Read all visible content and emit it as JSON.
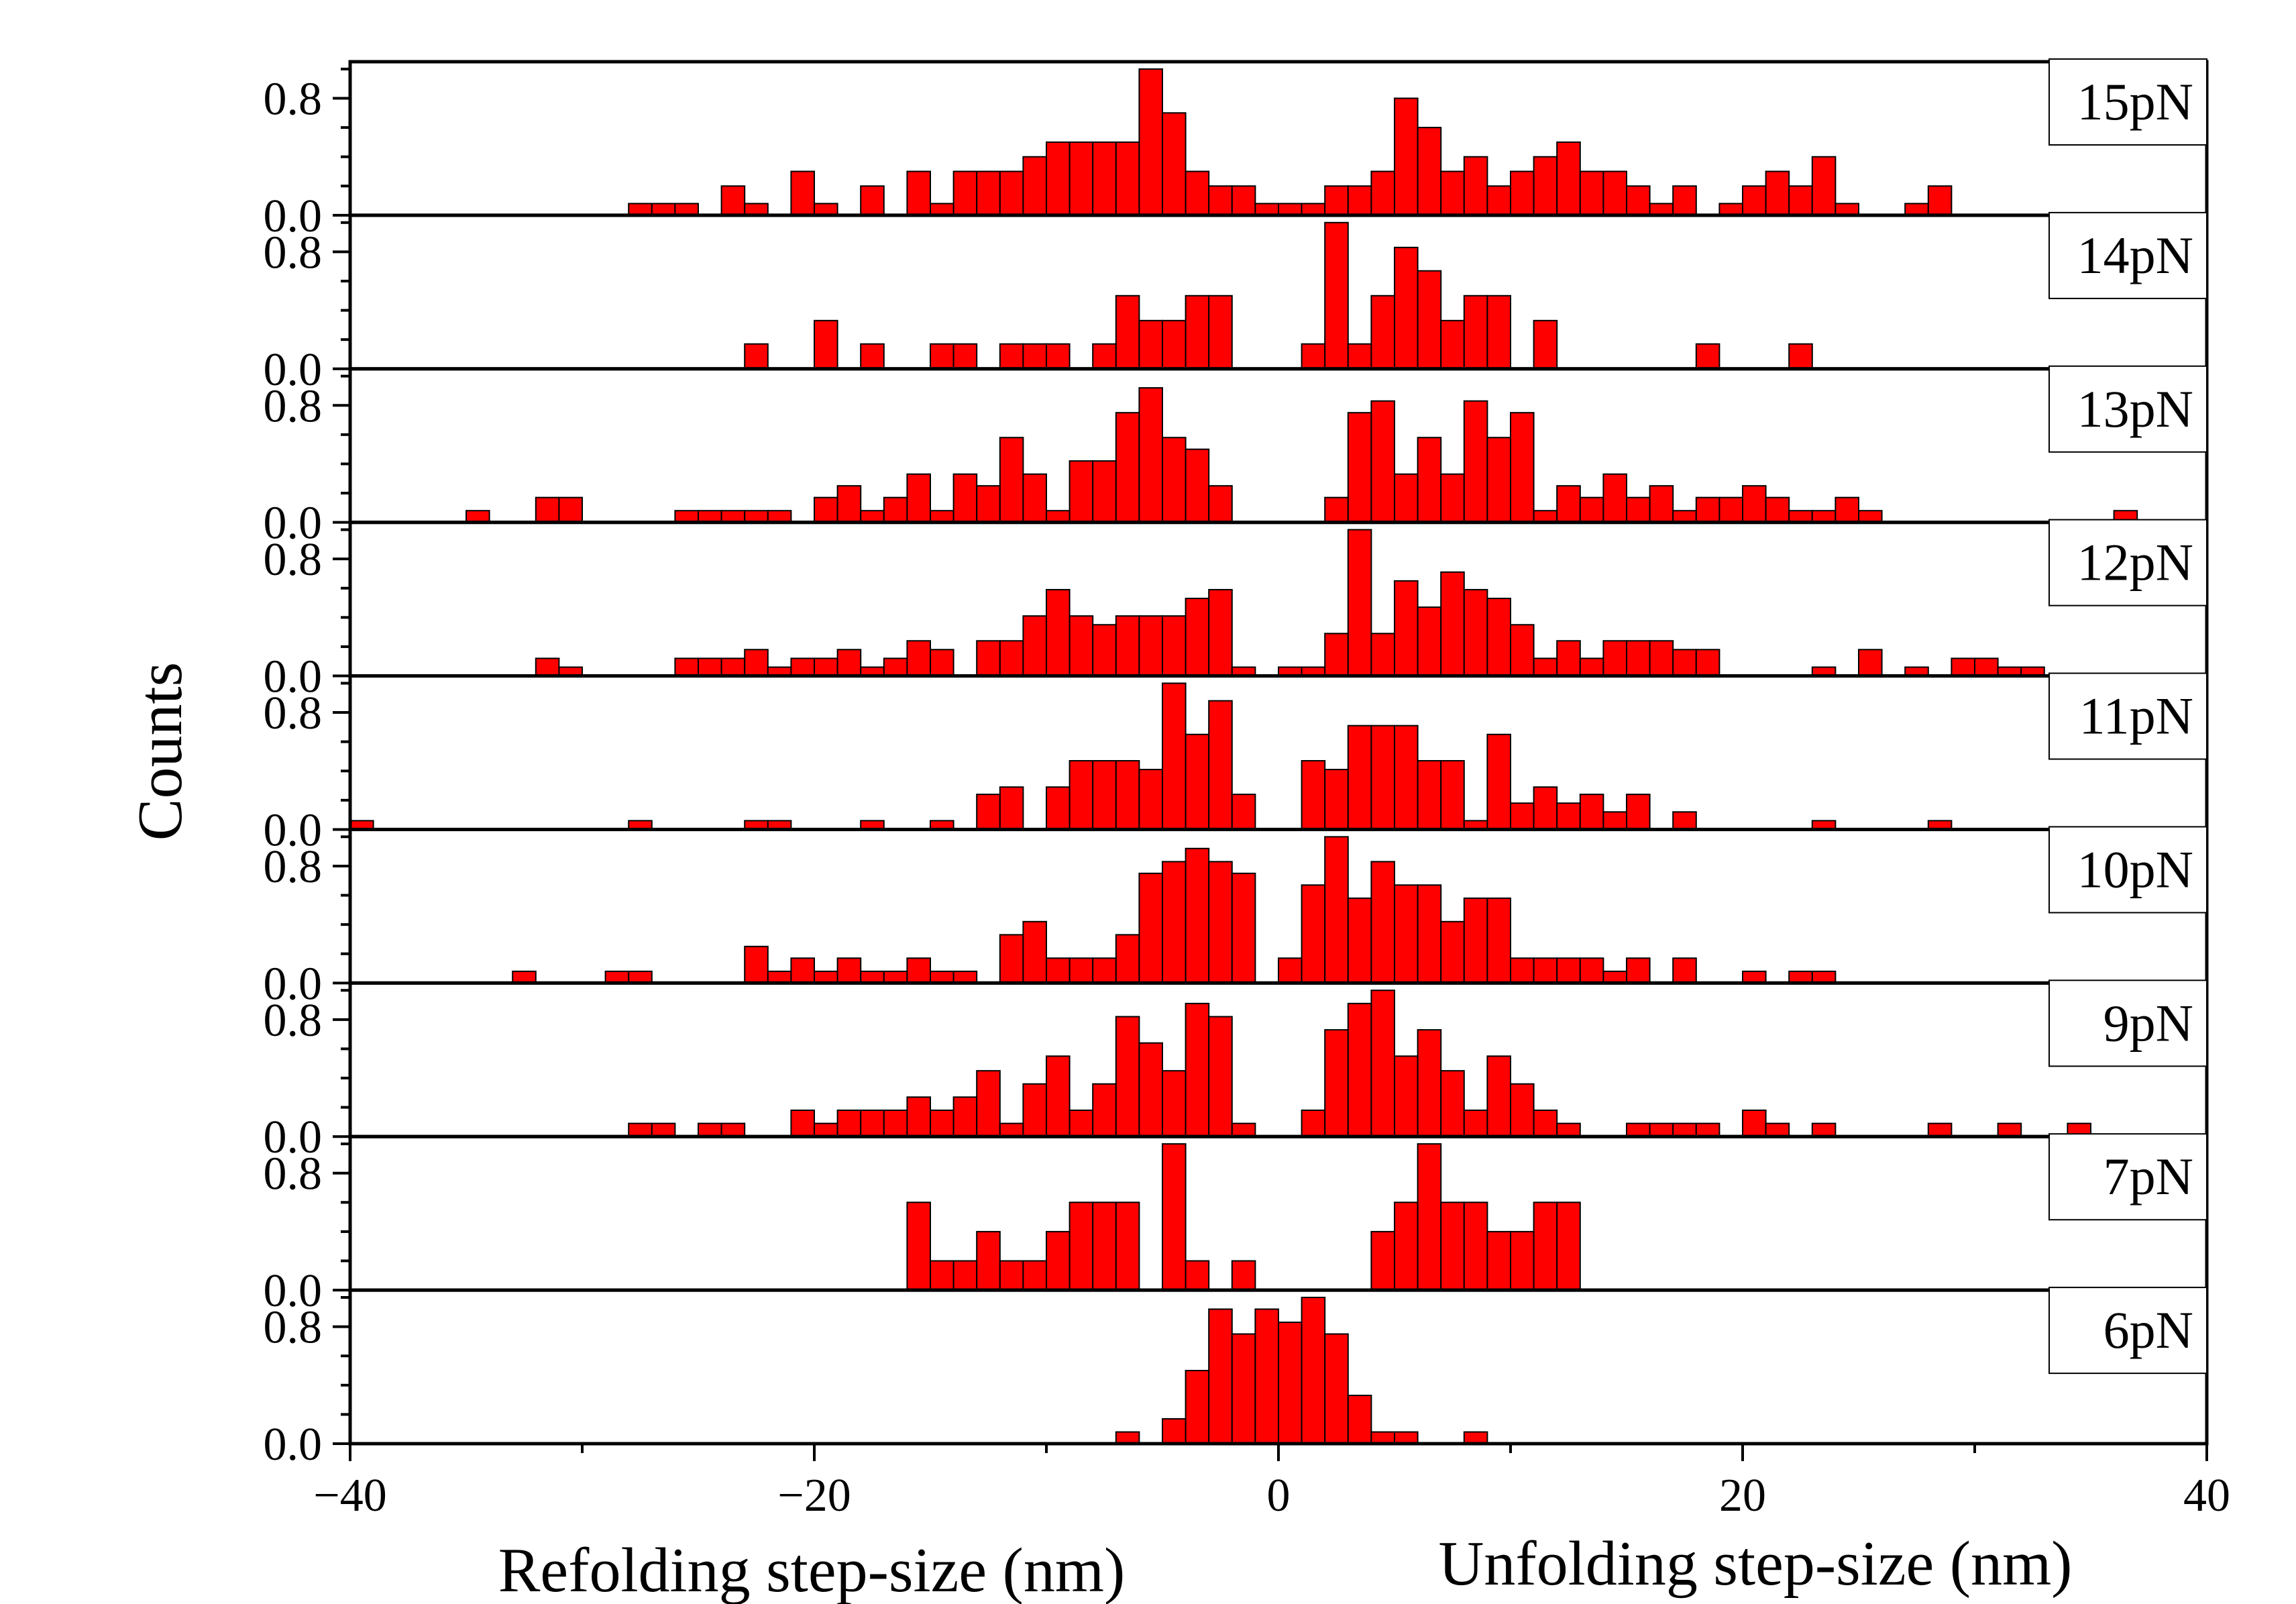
{
  "chart_data": {
    "type": "bar",
    "bin_width": 1,
    "xlim": [
      -40,
      40
    ],
    "ylim": [
      0,
      1.05
    ],
    "x_ticks": [
      -40,
      -20,
      0,
      20,
      40
    ],
    "x_tick_labels": [
      "−40",
      "−20",
      "0",
      "20",
      "40"
    ],
    "y_ticks": [
      0,
      0.8
    ],
    "y_tick_labels": [
      "0.0",
      "0.8"
    ],
    "ylabel": "Counts",
    "xlabel_left": "Refolding step-size (nm)",
    "xlabel_right": "Unfolding step-size (nm)",
    "bar_color": "#ff0000",
    "panels": [
      {
        "name": "15pN",
        "values": {
          "-27.5": 0.08,
          "-26.5": 0.08,
          "-25.5": 0.08,
          "-23.5": 0.2,
          "-22.5": 0.08,
          "-20.5": 0.3,
          "-19.5": 0.08,
          "-17.5": 0.2,
          "-15.5": 0.3,
          "-14.5": 0.08,
          "-13.5": 0.3,
          "-12.5": 0.3,
          "-11.5": 0.3,
          "-10.5": 0.4,
          "-9.5": 0.5,
          "-8.5": 0.5,
          "-7.5": 0.5,
          "-6.5": 0.5,
          "-5.5": 1.0,
          "-4.5": 0.7,
          "-3.5": 0.3,
          "-2.5": 0.2,
          "-1.5": 0.2,
          "-0.5": 0.08,
          "0.5": 0.08,
          "1.5": 0.08,
          "2.5": 0.2,
          "3.5": 0.2,
          "4.5": 0.3,
          "5.5": 0.8,
          "6.5": 0.6,
          "7.5": 0.3,
          "8.5": 0.4,
          "9.5": 0.2,
          "10.5": 0.3,
          "11.5": 0.4,
          "12.5": 0.5,
          "13.5": 0.3,
          "14.5": 0.3,
          "15.5": 0.2,
          "16.5": 0.08,
          "17.5": 0.2,
          "19.5": 0.08,
          "20.5": 0.2,
          "21.5": 0.3,
          "22.5": 0.2,
          "23.5": 0.4,
          "24.5": 0.08,
          "27.5": 0.08,
          "28.5": 0.2
        }
      },
      {
        "name": "14pN",
        "values": {
          "-22.5": 0.17,
          "-19.5": 0.33,
          "-17.5": 0.17,
          "-14.5": 0.17,
          "-13.5": 0.17,
          "-11.5": 0.17,
          "-10.5": 0.17,
          "-9.5": 0.17,
          "-7.5": 0.17,
          "-6.5": 0.5,
          "-5.5": 0.33,
          "-4.5": 0.33,
          "-3.5": 0.5,
          "-2.5": 0.5,
          "1.5": 0.17,
          "2.5": 1.0,
          "3.5": 0.17,
          "4.5": 0.5,
          "5.5": 0.83,
          "6.5": 0.67,
          "7.5": 0.33,
          "8.5": 0.5,
          "9.5": 0.5,
          "11.5": 0.33,
          "18.5": 0.17,
          "22.5": 0.17
        }
      },
      {
        "name": "13pN",
        "values": {
          "-34.5": 0.08,
          "-31.5": 0.17,
          "-30.5": 0.17,
          "-25.5": 0.08,
          "-24.5": 0.08,
          "-23.5": 0.08,
          "-22.5": 0.08,
          "-21.5": 0.08,
          "-19.5": 0.17,
          "-18.5": 0.25,
          "-17.5": 0.08,
          "-16.5": 0.17,
          "-15.5": 0.33,
          "-14.5": 0.08,
          "-13.5": 0.33,
          "-12.5": 0.25,
          "-11.5": 0.58,
          "-10.5": 0.33,
          "-9.5": 0.08,
          "-8.5": 0.42,
          "-7.5": 0.42,
          "-6.5": 0.75,
          "-5.5": 0.92,
          "-4.5": 0.58,
          "-3.5": 0.5,
          "-2.5": 0.25,
          "2.5": 0.17,
          "3.5": 0.75,
          "4.5": 0.83,
          "5.5": 0.33,
          "6.5": 0.58,
          "7.5": 0.33,
          "8.5": 0.83,
          "9.5": 0.58,
          "10.5": 0.75,
          "11.5": 0.08,
          "12.5": 0.25,
          "13.5": 0.17,
          "14.5": 0.33,
          "15.5": 0.17,
          "16.5": 0.25,
          "17.5": 0.08,
          "18.5": 0.17,
          "19.5": 0.17,
          "20.5": 0.25,
          "21.5": 0.17,
          "22.5": 0.08,
          "23.5": 0.08,
          "24.5": 0.17,
          "25.5": 0.08,
          "36.5": 0.08
        }
      },
      {
        "name": "12pN",
        "values": {
          "-31.5": 0.12,
          "-30.5": 0.06,
          "-25.5": 0.12,
          "-24.5": 0.12,
          "-23.5": 0.12,
          "-22.5": 0.18,
          "-21.5": 0.06,
          "-20.5": 0.12,
          "-19.5": 0.12,
          "-18.5": 0.18,
          "-17.5": 0.06,
          "-16.5": 0.12,
          "-15.5": 0.24,
          "-14.5": 0.18,
          "-12.5": 0.24,
          "-11.5": 0.24,
          "-10.5": 0.41,
          "-9.5": 0.59,
          "-8.5": 0.41,
          "-7.5": 0.35,
          "-6.5": 0.41,
          "-5.5": 0.41,
          "-4.5": 0.41,
          "-3.5": 0.53,
          "-2.5": 0.59,
          "-1.5": 0.06,
          "0.5": 0.06,
          "1.5": 0.06,
          "2.5": 0.29,
          "3.5": 1.0,
          "4.5": 0.29,
          "5.5": 0.65,
          "6.5": 0.47,
          "7.5": 0.71,
          "8.5": 0.59,
          "9.5": 0.53,
          "10.5": 0.35,
          "11.5": 0.12,
          "12.5": 0.24,
          "13.5": 0.12,
          "14.5": 0.24,
          "15.5": 0.24,
          "16.5": 0.24,
          "17.5": 0.18,
          "18.5": 0.18,
          "23.5": 0.06,
          "25.5": 0.18,
          "27.5": 0.06,
          "29.5": 0.12,
          "30.5": 0.12,
          "31.5": 0.06,
          "32.5": 0.06
        }
      },
      {
        "name": "11pN",
        "values": {
          "-39.5": 0.06,
          "-27.5": 0.06,
          "-22.5": 0.06,
          "-21.5": 0.06,
          "-17.5": 0.06,
          "-14.5": 0.06,
          "-12.5": 0.24,
          "-11.5": 0.29,
          "-9.5": 0.29,
          "-8.5": 0.47,
          "-7.5": 0.47,
          "-6.5": 0.47,
          "-5.5": 0.41,
          "-4.5": 1.0,
          "-3.5": 0.65,
          "-2.5": 0.88,
          "-1.5": 0.24,
          "1.5": 0.47,
          "2.5": 0.41,
          "3.5": 0.71,
          "4.5": 0.71,
          "5.5": 0.71,
          "6.5": 0.47,
          "7.5": 0.47,
          "8.5": 0.06,
          "9.5": 0.65,
          "10.5": 0.18,
          "11.5": 0.29,
          "12.5": 0.18,
          "13.5": 0.24,
          "14.5": 0.12,
          "15.5": 0.24,
          "17.5": 0.12,
          "23.5": 0.06,
          "28.5": 0.06
        }
      },
      {
        "name": "10pN",
        "values": {
          "-32.5": 0.08,
          "-28.5": 0.08,
          "-27.5": 0.08,
          "-22.5": 0.25,
          "-21.5": 0.08,
          "-20.5": 0.17,
          "-19.5": 0.08,
          "-18.5": 0.17,
          "-17.5": 0.08,
          "-16.5": 0.08,
          "-15.5": 0.17,
          "-14.5": 0.08,
          "-13.5": 0.08,
          "-11.5": 0.33,
          "-10.5": 0.42,
          "-9.5": 0.17,
          "-8.5": 0.17,
          "-7.5": 0.17,
          "-6.5": 0.33,
          "-5.5": 0.75,
          "-4.5": 0.83,
          "-3.5": 0.92,
          "-2.5": 0.83,
          "-1.5": 0.75,
          "0.5": 0.17,
          "1.5": 0.67,
          "2.5": 1.0,
          "3.5": 0.58,
          "4.5": 0.83,
          "5.5": 0.67,
          "6.5": 0.67,
          "7.5": 0.42,
          "8.5": 0.58,
          "9.5": 0.58,
          "10.5": 0.17,
          "11.5": 0.17,
          "12.5": 0.17,
          "13.5": 0.17,
          "14.5": 0.08,
          "15.5": 0.17,
          "17.5": 0.17,
          "20.5": 0.08,
          "22.5": 0.08,
          "23.5": 0.08
        }
      },
      {
        "name": "9pN",
        "values": {
          "-27.5": 0.09,
          "-26.5": 0.09,
          "-24.5": 0.09,
          "-23.5": 0.09,
          "-20.5": 0.18,
          "-19.5": 0.09,
          "-18.5": 0.18,
          "-17.5": 0.18,
          "-16.5": 0.18,
          "-15.5": 0.27,
          "-14.5": 0.18,
          "-13.5": 0.27,
          "-12.5": 0.45,
          "-11.5": 0.09,
          "-10.5": 0.36,
          "-9.5": 0.55,
          "-8.5": 0.18,
          "-7.5": 0.36,
          "-6.5": 0.82,
          "-5.5": 0.64,
          "-4.5": 0.45,
          "-3.5": 0.91,
          "-2.5": 0.82,
          "-1.5": 0.09,
          "1.5": 0.18,
          "2.5": 0.73,
          "3.5": 0.91,
          "4.5": 1.0,
          "5.5": 0.55,
          "6.5": 0.73,
          "7.5": 0.45,
          "8.5": 0.18,
          "9.5": 0.55,
          "10.5": 0.36,
          "11.5": 0.18,
          "12.5": 0.09,
          "15.5": 0.09,
          "16.5": 0.09,
          "17.5": 0.09,
          "18.5": 0.09,
          "20.5": 0.18,
          "21.5": 0.09,
          "23.5": 0.09,
          "28.5": 0.09,
          "31.5": 0.09,
          "34.5": 0.09
        }
      },
      {
        "name": "7pN",
        "values": {
          "-15.5": 0.6,
          "-14.5": 0.2,
          "-13.5": 0.2,
          "-12.5": 0.4,
          "-11.5": 0.2,
          "-10.5": 0.2,
          "-9.5": 0.4,
          "-8.5": 0.6,
          "-7.5": 0.6,
          "-6.5": 0.6,
          "-4.5": 1.0,
          "-3.5": 0.2,
          "-1.5": 0.2,
          "4.5": 0.4,
          "5.5": 0.6,
          "6.5": 1.0,
          "7.5": 0.6,
          "8.5": 0.6,
          "9.5": 0.4,
          "10.5": 0.4,
          "11.5": 0.6,
          "12.5": 0.6
        }
      },
      {
        "name": "6pN",
        "values": {
          "-6.5": 0.08,
          "-4.5": 0.17,
          "-3.5": 0.5,
          "-2.5": 0.92,
          "-1.5": 0.75,
          "-0.5": 0.92,
          "0.5": 0.83,
          "1.5": 1.0,
          "2.5": 0.75,
          "3.5": 0.33,
          "4.5": 0.08,
          "5.5": 0.08,
          "8.5": 0.08
        }
      }
    ]
  }
}
